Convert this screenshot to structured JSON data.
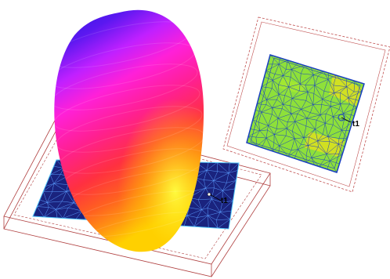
{
  "main_view": {
    "port_label": "t1",
    "colors": {
      "box_edge": "#b04040",
      "patch_fill": "#1a237e",
      "patch_mesh": "#5c9dff",
      "lobe_gradient": [
        "#2a1ae0",
        "#5a18f0",
        "#c020ff",
        "#ff20d8",
        "#ff2090",
        "#ff3040",
        "#ff6020",
        "#ff9a10",
        "#ffd000",
        "#ffff30"
      ]
    }
  },
  "inset_view": {
    "port_label": "t1",
    "colors": {
      "frame_edge": "#c05050",
      "panel_fill": "#ffffff",
      "field_fill": "#8ee03a",
      "field_hot": "#d8e020",
      "mesh_line": "#1a40c0"
    }
  }
}
